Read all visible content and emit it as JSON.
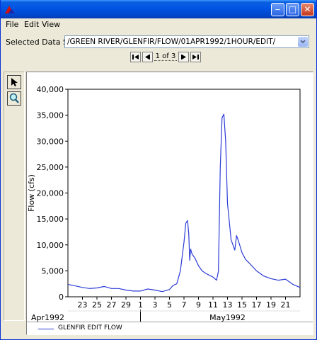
{
  "menu": {
    "file": "File",
    "edit": "Edit",
    "view": "View"
  },
  "dataset": {
    "label": "Selected Data Set:",
    "value": "/GREEN RIVER/GLENFIR/FLOW/01APR1992/1HOUR/EDIT/"
  },
  "navigation": {
    "page_indicator": "1 of 3"
  },
  "colors": {
    "series": "#2c3cd6",
    "titlebar": "#0054e3",
    "grid": "#c8c8c8"
  },
  "chart_data": {
    "type": "line",
    "ylabel": "Flow (cfs)",
    "xlabel": "",
    "ylim": [
      0,
      40000
    ],
    "xlim": [
      "1992-04-21",
      "1992-05-23"
    ],
    "grid": true,
    "yticks": [
      0,
      5000,
      10000,
      15000,
      20000,
      25000,
      30000,
      35000,
      40000
    ],
    "ytick_labels": [
      "0",
      "5,000",
      "10,000",
      "15,000",
      "20,000",
      "25,000",
      "30,000",
      "35,000",
      "40,000"
    ],
    "xticks": [
      "1992-04-23",
      "1992-04-25",
      "1992-04-27",
      "1992-04-29",
      "1992-05-01",
      "1992-05-03",
      "1992-05-05",
      "1992-05-07",
      "1992-05-09",
      "1992-05-11",
      "1992-05-13",
      "1992-05-15",
      "1992-05-17",
      "1992-05-19",
      "1992-05-21"
    ],
    "xtick_labels": [
      "23",
      "25",
      "27",
      "29",
      "1",
      "3",
      "5",
      "7",
      "9",
      "11",
      "13",
      "15",
      "17",
      "19",
      "21"
    ],
    "month_labels": [
      {
        "date": "1992-04-21",
        "label": "Apr1992"
      },
      {
        "date": "1992-05-13",
        "label": "May1992"
      }
    ],
    "legend": {
      "position": "bottom",
      "entries": [
        "GLENFIR EDIT FLOW"
      ]
    },
    "series": [
      {
        "name": "GLENFIR EDIT FLOW",
        "x": [
          "1992-04-21 00:00",
          "1992-04-22 00:00",
          "1992-04-23 00:00",
          "1992-04-24 00:00",
          "1992-04-25 00:00",
          "1992-04-26 00:00",
          "1992-04-26 12:00",
          "1992-04-27 00:00",
          "1992-04-28 00:00",
          "1992-04-29 00:00",
          "1992-04-30 00:00",
          "1992-05-01 00:00",
          "1992-05-02 00:00",
          "1992-05-03 00:00",
          "1992-05-04 00:00",
          "1992-05-04 12:00",
          "1992-05-05 00:00",
          "1992-05-05 12:00",
          "1992-05-06 00:00",
          "1992-05-06 12:00",
          "1992-05-07 00:00",
          "1992-05-07 06:00",
          "1992-05-07 12:00",
          "1992-05-07 16:00",
          "1992-05-07 19:00",
          "1992-05-07 22:00",
          "1992-05-08 03:00",
          "1992-05-08 12:00",
          "1992-05-09 00:00",
          "1992-05-09 12:00",
          "1992-05-10 00:00",
          "1992-05-11 00:00",
          "1992-05-11 12:00",
          "1992-05-11 18:00",
          "1992-05-12 00:00",
          "1992-05-12 06:00",
          "1992-05-12 12:00",
          "1992-05-12 18:00",
          "1992-05-13 00:00",
          "1992-05-13 12:00",
          "1992-05-14 00:00",
          "1992-05-14 06:00",
          "1992-05-14 12:00",
          "1992-05-15 00:00",
          "1992-05-15 12:00",
          "1992-05-16 00:00",
          "1992-05-17 00:00",
          "1992-05-18 00:00",
          "1992-05-19 00:00",
          "1992-05-20 00:00",
          "1992-05-21 00:00",
          "1992-05-22 00:00",
          "1992-05-23 00:00"
        ],
        "values": [
          2400,
          2100,
          1800,
          1600,
          1700,
          2000,
          1800,
          1600,
          1600,
          1300,
          1100,
          1100,
          1500,
          1300,
          1000,
          1200,
          1400,
          2200,
          2500,
          5000,
          10500,
          14200,
          14700,
          12000,
          7000,
          9200,
          8200,
          7500,
          6000,
          5000,
          4500,
          3800,
          3200,
          5000,
          25000,
          34500,
          35200,
          30000,
          18000,
          11000,
          9000,
          11800,
          10800,
          8500,
          7200,
          6500,
          5000,
          4000,
          3500,
          3200,
          3400,
          2400,
          1800
        ]
      }
    ]
  }
}
